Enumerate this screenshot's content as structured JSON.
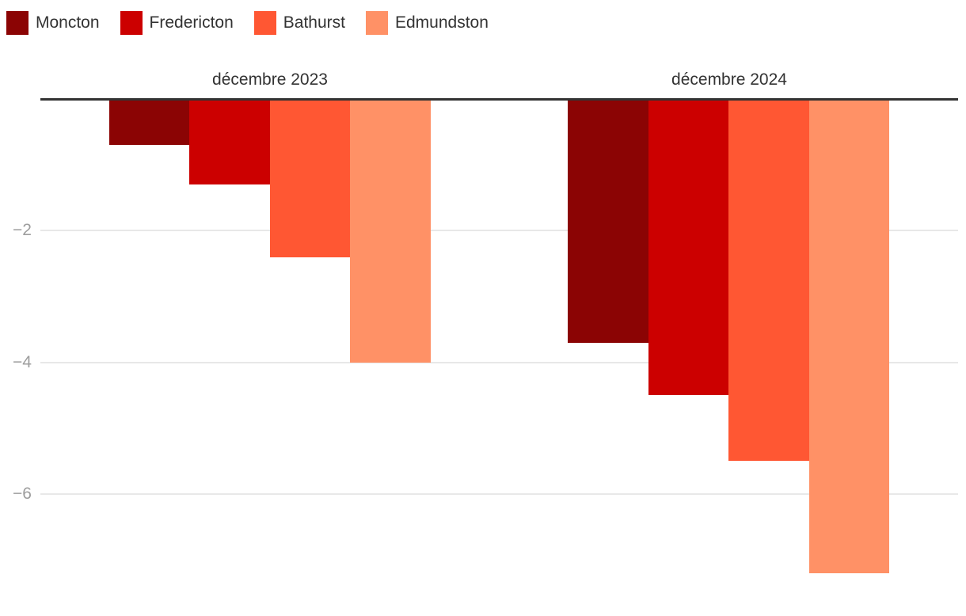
{
  "chart_data": {
    "type": "bar",
    "title": "",
    "categories": [
      "décembre 2023",
      "décembre 2024"
    ],
    "series": [
      {
        "name": "Moncton",
        "color": "#8b0404",
        "values": [
          -0.7,
          -3.7
        ]
      },
      {
        "name": "Fredericton",
        "color": "#cc0000",
        "values": [
          -1.3,
          -4.5
        ]
      },
      {
        "name": "Bathurst",
        "color": "#ff5733",
        "values": [
          -2.4,
          -5.5
        ]
      },
      {
        "name": "Edmundston",
        "color": "#ff9166",
        "values": [
          -4.0,
          -7.2
        ]
      }
    ],
    "yticks": [
      {
        "value": -2,
        "label": "−2"
      },
      {
        "value": -4,
        "label": "−4"
      },
      {
        "value": -6,
        "label": "−6"
      }
    ],
    "ylim": [
      -7.9,
      0
    ],
    "grid": true,
    "legend_position": "top",
    "orientation": "vertical-negative"
  },
  "colors": {
    "background": "#ffffff",
    "axis_line": "#333333",
    "gridline": "#e8e8e8",
    "tick_text": "#9e9e9e",
    "label_text": "#333333"
  }
}
